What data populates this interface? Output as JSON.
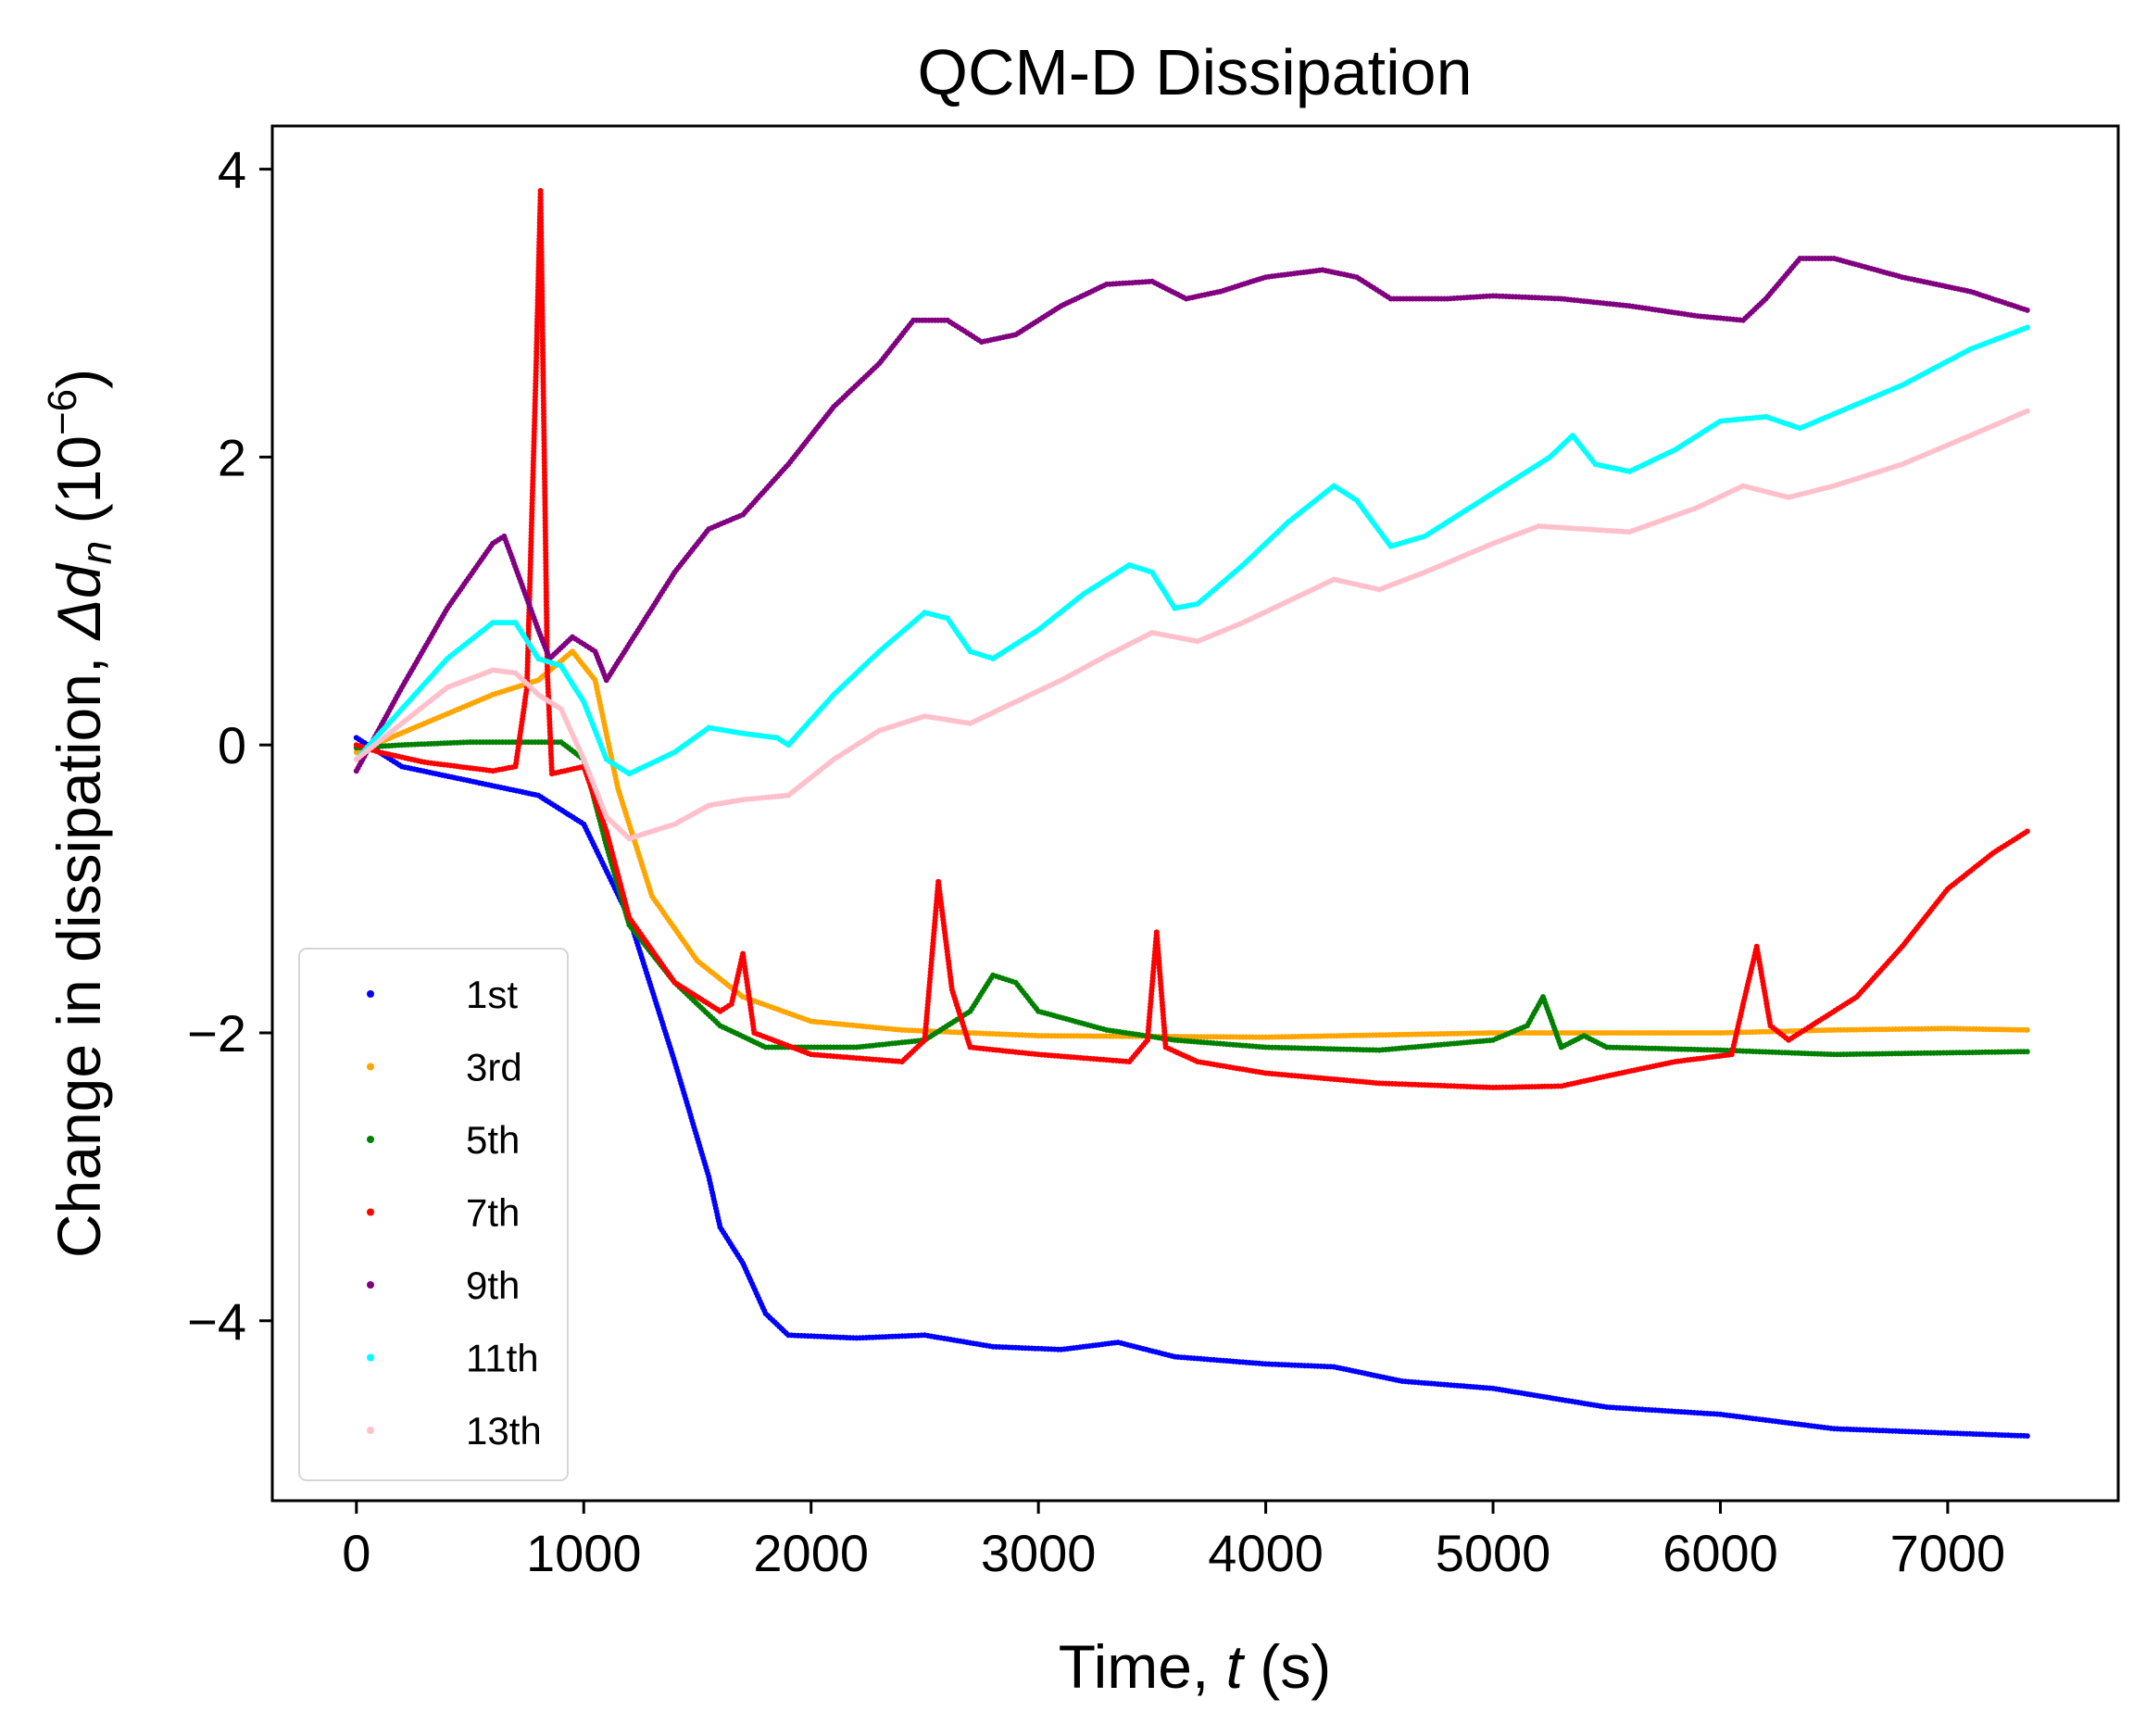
{
  "chart_data": {
    "type": "scatter",
    "title": "QCM-D Dissipation",
    "xlabel": {
      "prefix": "Time, ",
      "var": "t",
      "suffix": " (s)"
    },
    "ylabel": {
      "prefix": "Change in dissipation, ",
      "var": "Δd",
      "sub": "n",
      "unit_open": " (10",
      "exp": "−6",
      "unit_close": ")"
    },
    "xlim": [
      -370,
      7750
    ],
    "ylim": [
      -5.25,
      4.3
    ],
    "xticks": [
      0,
      1000,
      2000,
      3000,
      4000,
      5000,
      6000,
      7000
    ],
    "xtick_labels": [
      "0",
      "1000",
      "2000",
      "3000",
      "4000",
      "5000",
      "6000",
      "7000"
    ],
    "yticks": [
      4,
      2,
      0,
      -2,
      -4
    ],
    "ytick_labels": [
      "4",
      "2",
      "0",
      "−2",
      "−4"
    ],
    "grid": false,
    "legend": {
      "position": "lower-left"
    },
    "series": [
      {
        "name": "1st",
        "color": "#0000ff",
        "points": [
          [
            0,
            0.05
          ],
          [
            200,
            -0.15
          ],
          [
            500,
            -0.25
          ],
          [
            800,
            -0.35
          ],
          [
            1000,
            -0.55
          ],
          [
            1200,
            -1.2
          ],
          [
            1400,
            -2.2
          ],
          [
            1550,
            -3.0
          ],
          [
            1600,
            -3.35
          ],
          [
            1700,
            -3.6
          ],
          [
            1800,
            -3.95
          ],
          [
            1900,
            -4.1
          ],
          [
            2200,
            -4.12
          ],
          [
            2500,
            -4.1
          ],
          [
            2800,
            -4.18
          ],
          [
            3100,
            -4.2
          ],
          [
            3350,
            -4.15
          ],
          [
            3600,
            -4.25
          ],
          [
            4000,
            -4.3
          ],
          [
            4300,
            -4.32
          ],
          [
            4600,
            -4.42
          ],
          [
            5000,
            -4.47
          ],
          [
            5500,
            -4.6
          ],
          [
            6000,
            -4.65
          ],
          [
            6500,
            -4.75
          ],
          [
            7000,
            -4.78
          ],
          [
            7350,
            -4.8
          ]
        ]
      },
      {
        "name": "3rd",
        "color": "#ffa500",
        "points": [
          [
            0,
            -0.05
          ],
          [
            300,
            0.15
          ],
          [
            600,
            0.35
          ],
          [
            800,
            0.45
          ],
          [
            950,
            0.65
          ],
          [
            1050,
            0.45
          ],
          [
            1150,
            -0.3
          ],
          [
            1300,
            -1.05
          ],
          [
            1500,
            -1.5
          ],
          [
            1700,
            -1.75
          ],
          [
            2000,
            -1.92
          ],
          [
            2400,
            -1.98
          ],
          [
            3000,
            -2.02
          ],
          [
            4000,
            -2.03
          ],
          [
            5000,
            -2.0
          ],
          [
            6000,
            -2.0
          ],
          [
            6500,
            -1.98
          ],
          [
            7000,
            -1.97
          ],
          [
            7350,
            -1.98
          ]
        ]
      },
      {
        "name": "5th",
        "color": "#008000",
        "points": [
          [
            0,
            -0.02
          ],
          [
            200,
            0.0
          ],
          [
            500,
            0.02
          ],
          [
            900,
            0.02
          ],
          [
            1000,
            -0.1
          ],
          [
            1100,
            -0.7
          ],
          [
            1200,
            -1.25
          ],
          [
            1400,
            -1.65
          ],
          [
            1600,
            -1.95
          ],
          [
            1800,
            -2.1
          ],
          [
            2200,
            -2.1
          ],
          [
            2500,
            -2.05
          ],
          [
            2700,
            -1.85
          ],
          [
            2800,
            -1.6
          ],
          [
            2900,
            -1.65
          ],
          [
            3000,
            -1.85
          ],
          [
            3300,
            -1.98
          ],
          [
            3600,
            -2.05
          ],
          [
            4000,
            -2.1
          ],
          [
            4500,
            -2.12
          ],
          [
            5000,
            -2.05
          ],
          [
            5150,
            -1.95
          ],
          [
            5220,
            -1.75
          ],
          [
            5300,
            -2.1
          ],
          [
            5400,
            -2.02
          ],
          [
            5500,
            -2.1
          ],
          [
            6000,
            -2.12
          ],
          [
            6500,
            -2.15
          ],
          [
            7350,
            -2.13
          ]
        ]
      },
      {
        "name": "7th",
        "color": "#ff0000",
        "points": [
          [
            0,
            0.0
          ],
          [
            100,
            -0.05
          ],
          [
            300,
            -0.12
          ],
          [
            600,
            -0.18
          ],
          [
            700,
            -0.15
          ],
          [
            750,
            0.4
          ],
          [
            790,
            2.6
          ],
          [
            810,
            3.85
          ],
          [
            840,
            0.5
          ],
          [
            860,
            -0.2
          ],
          [
            1000,
            -0.15
          ],
          [
            1100,
            -0.6
          ],
          [
            1200,
            -1.2
          ],
          [
            1400,
            -1.65
          ],
          [
            1600,
            -1.85
          ],
          [
            1650,
            -1.8
          ],
          [
            1700,
            -1.45
          ],
          [
            1750,
            -2.0
          ],
          [
            2000,
            -2.15
          ],
          [
            2400,
            -2.2
          ],
          [
            2500,
            -2.05
          ],
          [
            2560,
            -0.95
          ],
          [
            2620,
            -1.7
          ],
          [
            2700,
            -2.1
          ],
          [
            3000,
            -2.15
          ],
          [
            3400,
            -2.2
          ],
          [
            3480,
            -2.05
          ],
          [
            3520,
            -1.3
          ],
          [
            3560,
            -2.1
          ],
          [
            3700,
            -2.2
          ],
          [
            4000,
            -2.28
          ],
          [
            4500,
            -2.35
          ],
          [
            5000,
            -2.38
          ],
          [
            5300,
            -2.37
          ],
          [
            5500,
            -2.3
          ],
          [
            5800,
            -2.2
          ],
          [
            6050,
            -2.15
          ],
          [
            6100,
            -1.8
          ],
          [
            6160,
            -1.4
          ],
          [
            6220,
            -1.95
          ],
          [
            6300,
            -2.05
          ],
          [
            6400,
            -1.95
          ],
          [
            6600,
            -1.75
          ],
          [
            6800,
            -1.4
          ],
          [
            7000,
            -1.0
          ],
          [
            7200,
            -0.75
          ],
          [
            7350,
            -0.6
          ]
        ]
      },
      {
        "name": "9th",
        "color": "#800080",
        "points": [
          [
            0,
            -0.18
          ],
          [
            200,
            0.4
          ],
          [
            400,
            0.95
          ],
          [
            600,
            1.4
          ],
          [
            650,
            1.45
          ],
          [
            800,
            0.8
          ],
          [
            850,
            0.6
          ],
          [
            950,
            0.75
          ],
          [
            1050,
            0.65
          ],
          [
            1100,
            0.45
          ],
          [
            1200,
            0.7
          ],
          [
            1400,
            1.2
          ],
          [
            1550,
            1.5
          ],
          [
            1700,
            1.6
          ],
          [
            1900,
            1.95
          ],
          [
            2100,
            2.35
          ],
          [
            2300,
            2.65
          ],
          [
            2450,
            2.95
          ],
          [
            2600,
            2.95
          ],
          [
            2750,
            2.8
          ],
          [
            2900,
            2.85
          ],
          [
            3100,
            3.05
          ],
          [
            3300,
            3.2
          ],
          [
            3500,
            3.22
          ],
          [
            3650,
            3.1
          ],
          [
            3800,
            3.15
          ],
          [
            4000,
            3.25
          ],
          [
            4250,
            3.3
          ],
          [
            4400,
            3.25
          ],
          [
            4550,
            3.1
          ],
          [
            4800,
            3.1
          ],
          [
            5000,
            3.12
          ],
          [
            5300,
            3.1
          ],
          [
            5600,
            3.05
          ],
          [
            5900,
            2.98
          ],
          [
            6100,
            2.95
          ],
          [
            6200,
            3.1
          ],
          [
            6350,
            3.38
          ],
          [
            6500,
            3.38
          ],
          [
            6800,
            3.25
          ],
          [
            7100,
            3.15
          ],
          [
            7350,
            3.02
          ]
        ]
      },
      {
        "name": "11th",
        "color": "#00ffff",
        "points": [
          [
            0,
            -0.1
          ],
          [
            200,
            0.25
          ],
          [
            400,
            0.6
          ],
          [
            600,
            0.85
          ],
          [
            700,
            0.85
          ],
          [
            800,
            0.6
          ],
          [
            900,
            0.55
          ],
          [
            1000,
            0.3
          ],
          [
            1100,
            -0.1
          ],
          [
            1200,
            -0.2
          ],
          [
            1400,
            -0.05
          ],
          [
            1550,
            0.12
          ],
          [
            1700,
            0.08
          ],
          [
            1850,
            0.05
          ],
          [
            1900,
            0.0
          ],
          [
            2100,
            0.35
          ],
          [
            2300,
            0.65
          ],
          [
            2500,
            0.92
          ],
          [
            2600,
            0.88
          ],
          [
            2700,
            0.65
          ],
          [
            2800,
            0.6
          ],
          [
            3000,
            0.8
          ],
          [
            3200,
            1.05
          ],
          [
            3400,
            1.25
          ],
          [
            3500,
            1.2
          ],
          [
            3600,
            0.95
          ],
          [
            3700,
            0.98
          ],
          [
            3900,
            1.25
          ],
          [
            4100,
            1.55
          ],
          [
            4300,
            1.8
          ],
          [
            4400,
            1.7
          ],
          [
            4550,
            1.38
          ],
          [
            4700,
            1.45
          ],
          [
            4900,
            1.65
          ],
          [
            5100,
            1.85
          ],
          [
            5250,
            2.0
          ],
          [
            5350,
            2.15
          ],
          [
            5450,
            1.95
          ],
          [
            5600,
            1.9
          ],
          [
            5800,
            2.05
          ],
          [
            6000,
            2.25
          ],
          [
            6200,
            2.28
          ],
          [
            6350,
            2.2
          ],
          [
            6500,
            2.3
          ],
          [
            6800,
            2.5
          ],
          [
            7100,
            2.75
          ],
          [
            7350,
            2.9
          ]
        ]
      },
      {
        "name": "13th",
        "color": "#ffc0cb",
        "points": [
          [
            0,
            -0.1
          ],
          [
            200,
            0.15
          ],
          [
            400,
            0.4
          ],
          [
            600,
            0.52
          ],
          [
            700,
            0.5
          ],
          [
            800,
            0.35
          ],
          [
            900,
            0.25
          ],
          [
            1000,
            -0.1
          ],
          [
            1100,
            -0.5
          ],
          [
            1200,
            -0.65
          ],
          [
            1400,
            -0.55
          ],
          [
            1550,
            -0.42
          ],
          [
            1700,
            -0.38
          ],
          [
            1900,
            -0.35
          ],
          [
            2100,
            -0.1
          ],
          [
            2300,
            0.1
          ],
          [
            2500,
            0.2
          ],
          [
            2700,
            0.15
          ],
          [
            2900,
            0.3
          ],
          [
            3100,
            0.45
          ],
          [
            3300,
            0.62
          ],
          [
            3500,
            0.78
          ],
          [
            3700,
            0.72
          ],
          [
            3900,
            0.85
          ],
          [
            4100,
            1.0
          ],
          [
            4300,
            1.15
          ],
          [
            4500,
            1.08
          ],
          [
            4700,
            1.2
          ],
          [
            5000,
            1.4
          ],
          [
            5200,
            1.52
          ],
          [
            5400,
            1.5
          ],
          [
            5600,
            1.48
          ],
          [
            5900,
            1.65
          ],
          [
            6100,
            1.8
          ],
          [
            6300,
            1.72
          ],
          [
            6500,
            1.8
          ],
          [
            6800,
            1.95
          ],
          [
            7100,
            2.15
          ],
          [
            7350,
            2.32
          ]
        ]
      }
    ]
  }
}
